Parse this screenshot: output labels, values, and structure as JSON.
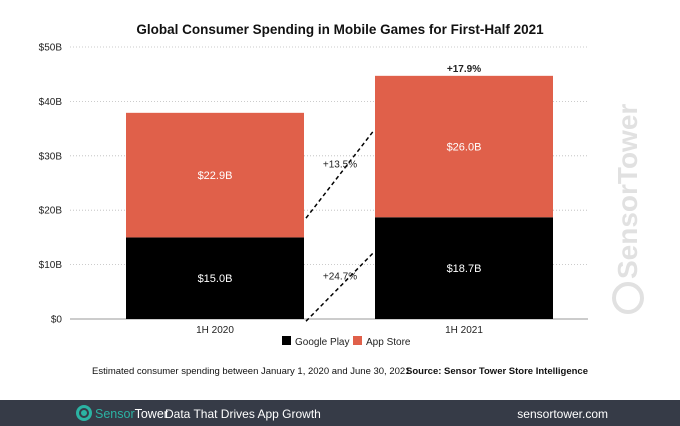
{
  "chart_data": {
    "type": "bar",
    "stacked": true,
    "title": "Global Consumer Spending in Mobile Games for First-Half 2021",
    "categories": [
      "1H 2020",
      "1H 2021"
    ],
    "series": [
      {
        "name": "Google Play",
        "values": [
          15.0,
          18.7
        ],
        "labels": [
          "$15.0B",
          "$18.7B"
        ],
        "color": "#000000"
      },
      {
        "name": "App Store",
        "values": [
          22.9,
          26.0
        ],
        "labels": [
          "$22.9B",
          "$26.0B"
        ],
        "color": "#e0604a"
      }
    ],
    "growth_annotations": {
      "google_play": "+24.7%",
      "app_store": "+13.5%",
      "total": "+17.9%"
    },
    "ylim": [
      0,
      50
    ],
    "yticks": [
      0,
      10,
      20,
      30,
      40,
      50
    ],
    "ytick_labels": [
      "$0",
      "$10B",
      "$20B",
      "$30B",
      "$40B",
      "$50B"
    ],
    "grid": true,
    "legend": "bottom"
  },
  "note": "Estimated consumer spending between January 1, 2020 and June 30, 2021",
  "source": "Source: Sensor Tower Store Intelligence",
  "watermark": "SensorTower",
  "footer": {
    "brand_part1": "Sensor",
    "brand_part2": "Tower",
    "tagline": "Data That Drives App Growth",
    "url": "sensortower.com",
    "bg_color": "#363b47",
    "accent_color": "#2bb3a3"
  }
}
